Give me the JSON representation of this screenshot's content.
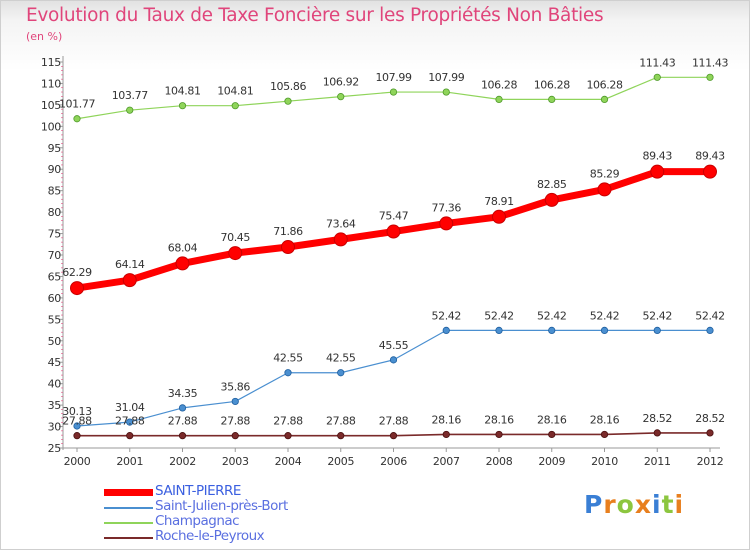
{
  "title": "Evolution du Taux de Taxe Foncière sur les Propriétés Non Bâties",
  "unit_label": "(en %)",
  "logo": {
    "text": "Proxiti",
    "colors": [
      "#3a7fd5",
      "#e87f1e",
      "#8cc63f",
      "#e87f1e",
      "#3a7fd5",
      "#8cc63f",
      "#e87f1e"
    ]
  },
  "chart_data": {
    "type": "line",
    "title": "Evolution du Taux de Taxe Foncière sur les Propriétés Non Bâties",
    "ylabel": "(en %)",
    "xlabel": "",
    "ylim": [
      25,
      115
    ],
    "yticks": [
      25,
      30,
      35,
      40,
      45,
      50,
      55,
      60,
      65,
      70,
      75,
      80,
      85,
      90,
      95,
      100,
      105,
      110,
      115
    ],
    "grid": false,
    "legend_position": "bottom-left",
    "x": [
      "2000",
      "2001",
      "2002",
      "2003",
      "2004",
      "2005",
      "2006",
      "2007",
      "2008",
      "2009",
      "2010",
      "2011",
      "2012"
    ],
    "series": [
      {
        "name": "SAINT-PIERRE",
        "color": "#ff0000",
        "values": [
          62.29,
          64.14,
          68.04,
          70.45,
          71.86,
          73.64,
          75.47,
          77.36,
          78.91,
          82.85,
          85.29,
          89.43,
          89.43
        ],
        "labels": [
          "62.29",
          "64.14",
          "68.04",
          "70.45",
          "71.86",
          "73.64",
          "75.47",
          "77.36",
          "78.91",
          "82.85",
          "85.29",
          "89.43",
          "89.43"
        ]
      },
      {
        "name": "Saint-Julien-près-Bort",
        "color": "#4a8fd0",
        "values": [
          30.13,
          31.04,
          34.35,
          35.86,
          42.55,
          42.55,
          45.55,
          52.42,
          52.42,
          52.42,
          52.42,
          52.42,
          52.42
        ],
        "labels": [
          "30.13",
          "31.04",
          "34.35",
          "35.86",
          "42.55",
          "42.55",
          "45.55",
          "52.42",
          "52.42",
          "52.42",
          "52.42",
          "52.42",
          "52.42"
        ]
      },
      {
        "name": "Champagnac",
        "color": "#8fd45a",
        "values": [
          101.77,
          103.77,
          104.81,
          104.81,
          105.86,
          106.92,
          107.99,
          107.99,
          106.28,
          106.28,
          106.28,
          111.43,
          111.43
        ],
        "labels": [
          "101.77",
          "103.77",
          "104.81",
          "104.81",
          "105.86",
          "106.92",
          "107.99",
          "107.99",
          "106.28",
          "106.28",
          "106.28",
          "111.43",
          "111.43"
        ]
      },
      {
        "name": "Roche-le-Peyroux",
        "color": "#7a2a2a",
        "values": [
          27.88,
          27.88,
          27.88,
          27.88,
          27.88,
          27.88,
          27.88,
          28.16,
          28.16,
          28.16,
          28.16,
          28.52,
          28.52
        ],
        "labels": [
          "27.88",
          "27.88",
          "27.88",
          "27.88",
          "27.88",
          "27.88",
          "27.88",
          "28.16",
          "28.16",
          "28.16",
          "28.16",
          "28.52",
          "28.52"
        ]
      }
    ]
  }
}
